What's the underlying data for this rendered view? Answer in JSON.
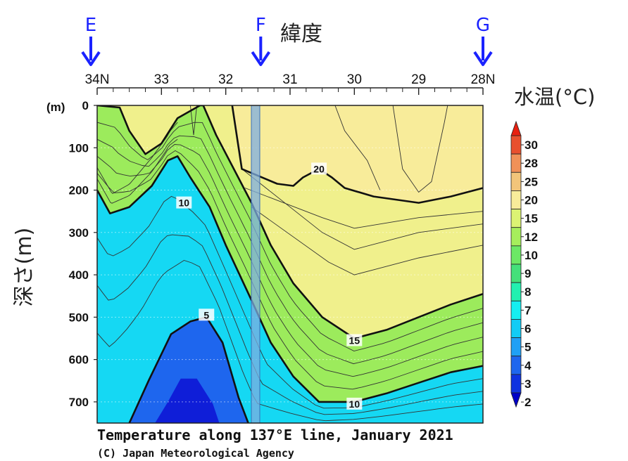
{
  "chart_data": {
    "type": "heatmap",
    "title": "Temperature along 137°E line, January 2021",
    "credit": "(C) Japan Meteorological Agency",
    "xlabel": "緯度",
    "ylabel": "深さ(m)",
    "depth_unit_label": "(m)",
    "colorbar_title": "水温(°C)",
    "x_ticks": [
      "34N",
      "33",
      "32",
      "31",
      "30",
      "29",
      "28N"
    ],
    "x_tick_values": [
      34,
      33,
      32,
      31,
      30,
      29,
      28
    ],
    "xlim": [
      34,
      28
    ],
    "y_ticks": [
      "0",
      "100",
      "200",
      "300",
      "400",
      "500",
      "600",
      "700"
    ],
    "y_tick_values": [
      0,
      100,
      200,
      300,
      400,
      500,
      600,
      700
    ],
    "ylim": [
      0,
      750
    ],
    "stations": [
      {
        "name": "E",
        "lat": 34
      },
      {
        "name": "F",
        "lat": 31.5
      },
      {
        "name": "G",
        "lat": 28
      }
    ],
    "colorbar_levels": [
      2,
      3,
      4,
      5,
      6,
      7,
      8,
      9,
      10,
      12,
      15,
      20,
      25,
      28,
      30
    ],
    "colorbar_labels": [
      "30",
      "28",
      "25",
      "20",
      "15",
      "12",
      "10",
      "9",
      "8",
      "7",
      "6",
      "5",
      "4",
      "3",
      "2"
    ],
    "colorbar_colors": [
      "#0000c8",
      "#0f33e0",
      "#1e66ee",
      "#1fa0f5",
      "#12ccf5",
      "#15eef0",
      "#22f0b0",
      "#44e07a",
      "#6ce865",
      "#a6ee5c",
      "#dcf373",
      "#f8ec9a",
      "#f2c57a",
      "#f09158",
      "#e8502e",
      "#e82010"
    ],
    "contour_labels": [
      {
        "text": "20",
        "lat": 30.55,
        "depth": 150
      },
      {
        "text": "10",
        "lat": 32.65,
        "depth": 230
      },
      {
        "text": "5",
        "lat": 32.3,
        "depth": 495
      },
      {
        "text": "15",
        "lat": 30.0,
        "depth": 555
      },
      {
        "text": "10",
        "lat": 30.0,
        "depth": 705
      }
    ],
    "thick_isotherms": [
      {
        "level": 20,
        "points": [
          [
            31.9,
            0
          ],
          [
            31.75,
            150
          ],
          [
            31.2,
            185
          ],
          [
            30.95,
            190
          ],
          [
            30.8,
            170
          ],
          [
            30.55,
            150
          ],
          [
            30.35,
            170
          ],
          [
            30.15,
            195
          ],
          [
            29.7,
            215
          ],
          [
            29.0,
            230
          ],
          [
            28.5,
            215
          ],
          [
            28.0,
            195
          ]
        ]
      },
      {
        "level": 15,
        "points": [
          [
            34,
            0
          ],
          [
            33.65,
            5
          ],
          [
            33.5,
            60
          ],
          [
            33.25,
            115
          ],
          [
            33.0,
            90
          ],
          [
            32.75,
            30
          ],
          [
            32.4,
            0
          ],
          [
            32.35,
            0
          ],
          [
            32.15,
            70
          ],
          [
            31.6,
            230
          ],
          [
            31.3,
            330
          ],
          [
            30.95,
            420
          ],
          [
            30.5,
            500
          ],
          [
            30.0,
            550
          ],
          [
            29.5,
            530
          ],
          [
            29.0,
            500
          ],
          [
            28.5,
            470
          ],
          [
            28.0,
            445
          ]
        ]
      },
      {
        "level": 10,
        "points": [
          [
            34,
            200
          ],
          [
            33.8,
            255
          ],
          [
            33.5,
            240
          ],
          [
            33.15,
            190
          ],
          [
            32.9,
            130
          ],
          [
            32.75,
            120
          ],
          [
            32.55,
            170
          ],
          [
            32.25,
            240
          ],
          [
            32.0,
            330
          ],
          [
            31.6,
            460
          ],
          [
            31.3,
            560
          ],
          [
            30.95,
            640
          ],
          [
            30.55,
            700
          ],
          [
            30.0,
            700
          ],
          [
            29.5,
            680
          ],
          [
            29.0,
            655
          ],
          [
            28.5,
            630
          ],
          [
            28.0,
            615
          ]
        ]
      },
      {
        "level": 5,
        "points": [
          [
            33.5,
            750
          ],
          [
            33.2,
            650
          ],
          [
            32.85,
            540
          ],
          [
            32.55,
            510
          ],
          [
            32.3,
            500
          ],
          [
            32.05,
            560
          ],
          [
            31.8,
            690
          ],
          [
            31.65,
            750
          ]
        ]
      }
    ]
  }
}
